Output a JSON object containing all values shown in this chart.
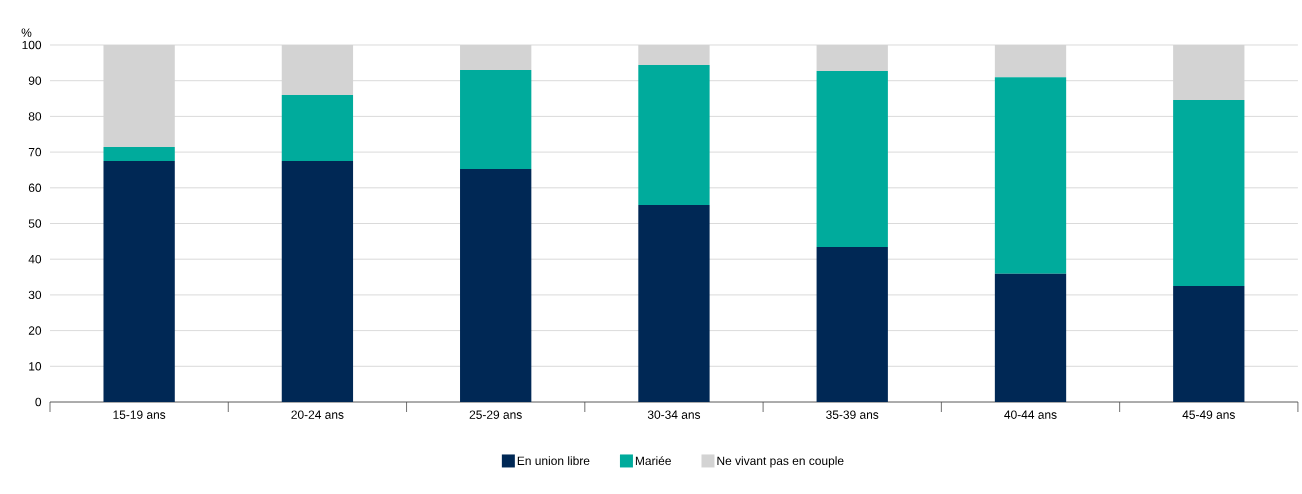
{
  "chart_data": {
    "type": "bar",
    "stacked": true,
    "ylabel": "%",
    "categories": [
      "15-19 ans",
      "20-24 ans",
      "25-29 ans",
      "30-34 ans",
      "35-39 ans",
      "40-44 ans",
      "45-49 ans"
    ],
    "series": [
      {
        "name": "En union libre",
        "color": "#002855",
        "values": [
          67.5,
          67.5,
          65.3,
          55.2,
          43.4,
          35.9,
          32.5
        ]
      },
      {
        "name": "Mariée",
        "color": "#00ab9c",
        "values": [
          3.9,
          18.5,
          27.7,
          39.2,
          49.3,
          55.1,
          52.1
        ]
      },
      {
        "name": "Ne vivant pas en couple",
        "color": "#d3d3d3",
        "values": [
          28.6,
          14.0,
          7.0,
          5.6,
          7.3,
          9.0,
          15.4
        ]
      }
    ],
    "ylim": [
      0,
      100
    ],
    "yticks": [
      0,
      10,
      20,
      30,
      40,
      50,
      60,
      70,
      80,
      90,
      100
    ],
    "grid": "y",
    "legend": "bottom"
  }
}
